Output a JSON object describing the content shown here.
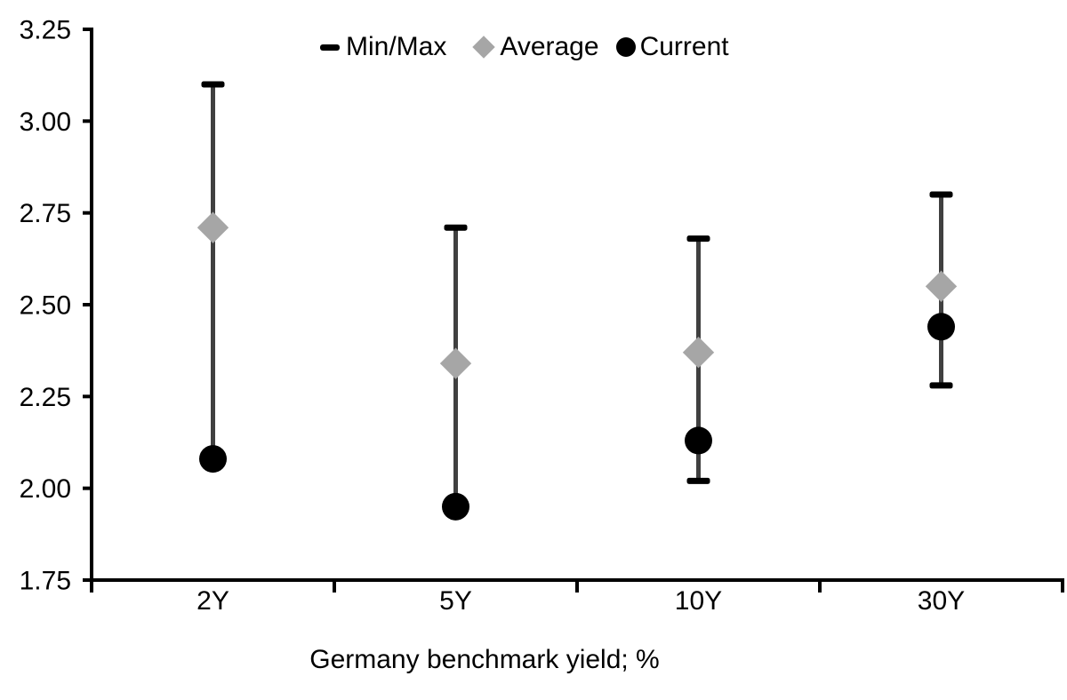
{
  "chart_data": {
    "type": "scatter",
    "subtype": "range-min-max-average-current",
    "title": "",
    "xlabel": "Germany benchmark yield; %",
    "ylabel": "",
    "categories": [
      "2Y",
      "5Y",
      "10Y",
      "30Y"
    ],
    "series": [
      {
        "name": "Min/Max",
        "type": "errorbar",
        "max": [
          3.1,
          2.71,
          2.68,
          2.8
        ],
        "min": [
          2.08,
          1.95,
          2.02,
          2.28
        ],
        "cap_color": "#000000",
        "line_color": "#404040"
      },
      {
        "name": "Average",
        "type": "scatter",
        "marker": "diamond",
        "color": "#a6a6a6",
        "values": [
          2.71,
          2.34,
          2.37,
          2.55
        ]
      },
      {
        "name": "Current",
        "type": "scatter",
        "marker": "circle",
        "color": "#000000",
        "values": [
          2.08,
          1.95,
          2.13,
          2.44
        ]
      }
    ],
    "yaxis": {
      "min": 1.75,
      "max": 3.25,
      "step": 0.25,
      "tick_labels": [
        "3.25",
        "3.00",
        "2.75",
        "2.50",
        "2.25",
        "2.00",
        "1.75"
      ]
    },
    "legend": {
      "position": "top",
      "entries": [
        "Min/Max",
        "Average",
        "Current"
      ]
    },
    "grid": false,
    "axis_color": "#000000",
    "background": "#ffffff"
  }
}
